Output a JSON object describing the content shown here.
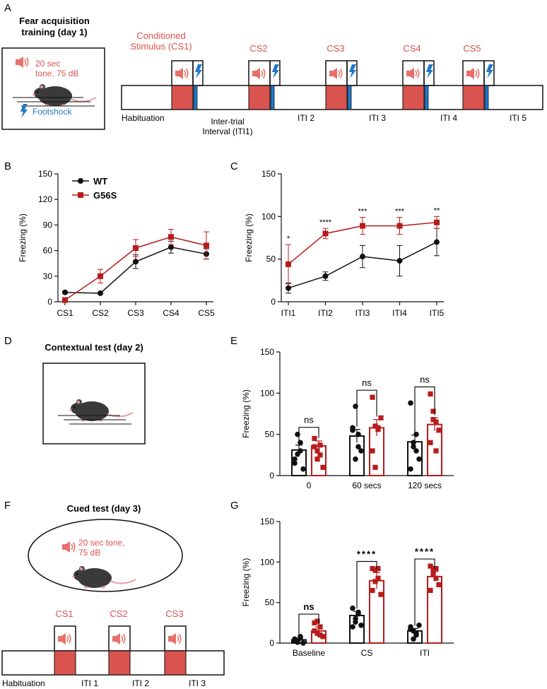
{
  "colors": {
    "wt": "#111111",
    "mut": "#b71c1c",
    "mut_fill": "#d9534f",
    "shock": "#1f78c8",
    "speaker": "#e8706a"
  },
  "icons": {
    "speaker": "speaker-icon",
    "shock": "lightning-bolt-icon",
    "mouse": "mouse-icon"
  },
  "panels": {
    "a": "A",
    "b": "B",
    "c": "C",
    "d": "D",
    "e": "E",
    "f": "F",
    "g": "G"
  },
  "panelA": {
    "title_line1": "Fear acquisition",
    "title_line2": "training (day 1)",
    "tone_line1": "20 sec",
    "tone_line2": "tone, 75 dB",
    "footshock": "Footshock",
    "cs1_line1": "Conditioned",
    "cs1_line2": "Stimulus (CS1)",
    "cs_labels": [
      "CS2",
      "CS3",
      "CS4",
      "CS5"
    ],
    "habituation": "Habituation",
    "iti1_line1": "Inter-trial",
    "iti1_line2": "Interval (ITI1)",
    "iti_labels": [
      "ITI 2",
      "ITI 3",
      "ITI 4",
      "ITI 5"
    ]
  },
  "panelD": {
    "title": "Contextual test (day 2)"
  },
  "panelF": {
    "title": "Cued test (day 3)",
    "tone_line1": "20 sec tone,",
    "tone_line2": "75 dB",
    "cs_labels": [
      "CS1",
      "CS2",
      "CS3"
    ],
    "habituation": "Habituation",
    "iti_labels": [
      "ITI 1",
      "ITI 2",
      "ITI 3"
    ]
  },
  "chart_data": [
    {
      "id": "B",
      "type": "line",
      "categories": [
        "CS1",
        "CS2",
        "CS3",
        "CS4",
        "CS5"
      ],
      "ylabel": "Freezing (%)",
      "ylim": [
        0,
        150
      ],
      "yticks": [
        "0",
        "30",
        "60",
        "90",
        "120",
        "150"
      ],
      "legend": [
        "WT",
        "G56S"
      ],
      "series": [
        {
          "name": "WT",
          "values": [
            11,
            10,
            47,
            64,
            56
          ],
          "err": [
            1,
            1,
            8,
            7,
            6
          ]
        },
        {
          "name": "G56S",
          "values": [
            2,
            30,
            63,
            76,
            66
          ],
          "err": [
            2,
            8,
            10,
            9,
            16
          ]
        }
      ]
    },
    {
      "id": "C",
      "type": "line",
      "categories": [
        "ITI1",
        "ITI2",
        "ITI3",
        "ITI4",
        "ITI5"
      ],
      "ylabel": "Freezing (%)",
      "ylim": [
        0,
        150
      ],
      "yticks": [
        "0",
        "50",
        "100",
        "150"
      ],
      "series": [
        {
          "name": "WT",
          "values": [
            16,
            30,
            53,
            48,
            70
          ],
          "err": [
            6,
            5,
            13,
            18,
            16
          ]
        },
        {
          "name": "G56S",
          "values": [
            44,
            80,
            89,
            89,
            93
          ],
          "err": [
            23,
            6,
            10,
            10,
            7
          ]
        }
      ],
      "significance": [
        "*",
        "****",
        "***",
        "***",
        "**"
      ]
    },
    {
      "id": "E",
      "type": "bar",
      "categories": [
        "0",
        "60 secs",
        "120 secs"
      ],
      "ylabel": "Freezing (%)",
      "ylim": [
        0,
        150
      ],
      "yticks": [
        "0",
        "50",
        "100",
        "150"
      ],
      "series": [
        {
          "name": "WT",
          "values": [
            31,
            48,
            41
          ],
          "err": [
            6,
            8,
            8
          ],
          "points": [
            [
              20,
              26,
              30,
              8,
              15,
              50,
              40
            ],
            [
              58,
              84,
              35,
              30,
              55,
              20,
              50
            ],
            [
              88,
              40,
              30,
              20,
              8,
              35,
              50
            ]
          ]
        },
        {
          "name": "G56S",
          "values": [
            36,
            58,
            62
          ],
          "err": [
            6,
            10,
            8
          ],
          "points": [
            [
              35,
              20,
              25,
              10,
              45,
              30,
              37
            ],
            [
              95,
              60,
              56,
              70,
              30,
              10,
              58
            ],
            [
              99,
              78,
              65,
              55,
              40,
              68,
              30
            ]
          ]
        }
      ],
      "significance": [
        "ns",
        "ns",
        "ns"
      ]
    },
    {
      "id": "G",
      "type": "bar",
      "categories": [
        "Baseline",
        "CS",
        "ITI"
      ],
      "ylabel": "Freezing (%)",
      "ylim": [
        0,
        150
      ],
      "yticks": [
        "0",
        "50",
        "100",
        "150"
      ],
      "series": [
        {
          "name": "WT",
          "values": [
            4,
            34,
            15
          ],
          "err": [
            2,
            5,
            3
          ],
          "points": [
            [
              5,
              2,
              8,
              0,
              3,
              1,
              6
            ],
            [
              43,
              30,
              38,
              22,
              20,
              26,
              36
            ],
            [
              20,
              15,
              10,
              22,
              17,
              5,
              12
            ]
          ]
        },
        {
          "name": "G56S",
          "values": [
            15,
            77,
            82
          ],
          "err": [
            5,
            10,
            6
          ],
          "points": [
            [
              25,
              27,
              10,
              8,
              15,
              12,
              20
            ],
            [
              92,
              90,
              80,
              60,
              65,
              76,
              92
            ],
            [
              95,
              92,
              80,
              72,
              65,
              86,
              92
            ]
          ]
        }
      ],
      "significance": [
        "ns",
        "****",
        "****"
      ]
    }
  ]
}
